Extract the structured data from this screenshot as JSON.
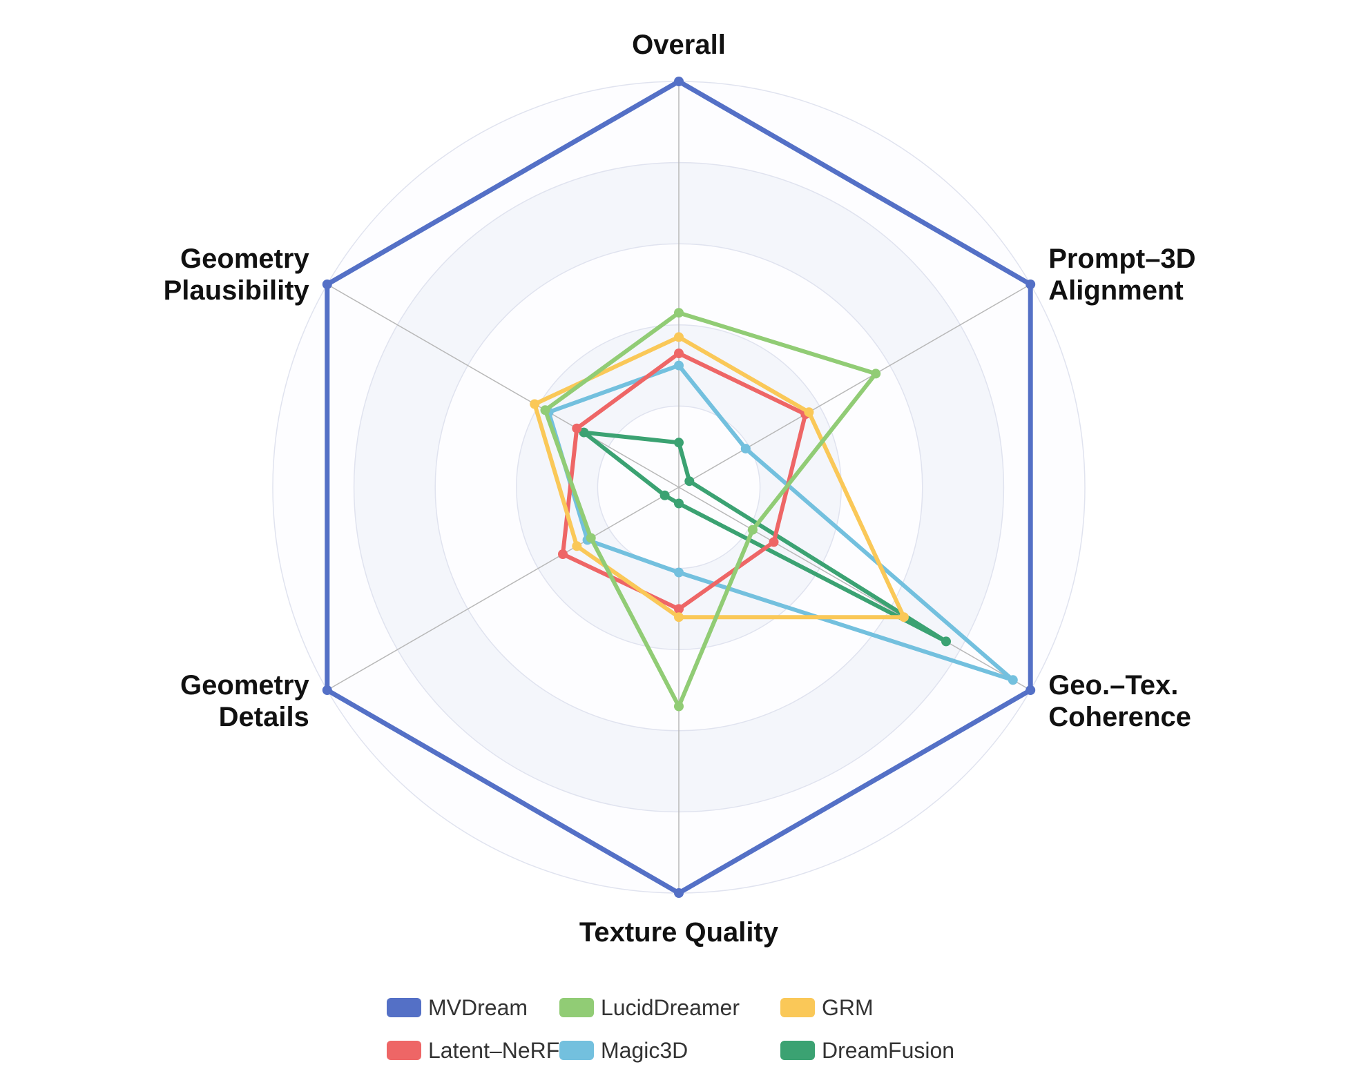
{
  "chart_data": {
    "type": "radar",
    "title": "",
    "axes": [
      {
        "label": "Overall",
        "lines": [
          "Overall"
        ]
      },
      {
        "label": "Prompt-3D Alignment",
        "lines": [
          "Prompt–3D",
          "Alignment"
        ]
      },
      {
        "label": "Geo.-Tex. Coherence",
        "lines": [
          "Geo.–Tex.",
          "Coherence"
        ]
      },
      {
        "label": "Texture Quality",
        "lines": [
          "Texture Quality"
        ]
      },
      {
        "label": "Geometry Details",
        "lines": [
          "Geometry",
          "Details"
        ]
      },
      {
        "label": "Geometry Plausibility",
        "lines": [
          "Geometry",
          "Plausibility"
        ]
      }
    ],
    "range": [
      0,
      1
    ],
    "rings": 5,
    "series": [
      {
        "name": "MVDream",
        "color": "#5470c6",
        "values": [
          1.0,
          1.0,
          1.0,
          1.0,
          1.0,
          1.0
        ]
      },
      {
        "name": "LucidDreamer",
        "color": "#91cc75",
        "values": [
          0.43,
          0.56,
          0.21,
          0.54,
          0.25,
          0.38
        ]
      },
      {
        "name": "GRM",
        "color": "#fac858",
        "values": [
          0.37,
          0.37,
          0.64,
          0.32,
          0.29,
          0.41
        ]
      },
      {
        "name": "Latent-NeRF",
        "color": "#ee6666",
        "values": [
          0.33,
          0.36,
          0.27,
          0.3,
          0.33,
          0.29
        ]
      },
      {
        "name": "Magic3D",
        "color": "#73c0de",
        "values": [
          0.3,
          0.19,
          0.95,
          0.21,
          0.26,
          0.37
        ]
      },
      {
        "name": "DreamFusion",
        "color": "#3ba272",
        "values": [
          0.11,
          0.03,
          0.76,
          0.04,
          0.04,
          0.27
        ]
      }
    ],
    "legend_position": "bottom-center",
    "grid": true
  }
}
